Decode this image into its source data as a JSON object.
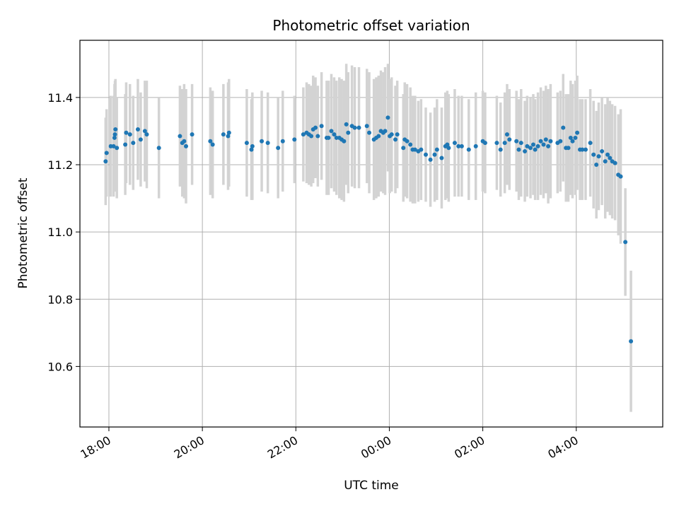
{
  "chart_data": {
    "type": "scatter",
    "title": "Photometric offset variation",
    "xlabel": "UTC time",
    "ylabel": "Photometric offset",
    "x_unit": "hours since 18:00 UTC",
    "xlim": [
      -0.62,
      11.85
    ],
    "ylim": [
      10.42,
      11.57
    ],
    "grid": true,
    "colors": {
      "marker": "#1f77b4",
      "errorbar": "#d3d3d3",
      "grid": "#b0b0b0"
    },
    "x_ticks": [
      {
        "value": 0,
        "label": "18:00"
      },
      {
        "value": 2,
        "label": "20:00"
      },
      {
        "value": 4,
        "label": "22:00"
      },
      {
        "value": 6,
        "label": "00:00"
      },
      {
        "value": 8,
        "label": "02:00"
      },
      {
        "value": 10,
        "label": "04:00"
      }
    ],
    "y_ticks": [
      {
        "value": 10.6,
        "label": "10.6"
      },
      {
        "value": 10.8,
        "label": "10.8"
      },
      {
        "value": 11.0,
        "label": "11.0"
      },
      {
        "value": 11.2,
        "label": "11.2"
      },
      {
        "value": 11.4,
        "label": "11.4"
      }
    ],
    "points": [
      [
        -0.07,
        11.21,
        0.13
      ],
      [
        -0.05,
        11.235,
        0.13
      ],
      [
        0.04,
        11.255,
        0.15
      ],
      [
        0.1,
        11.255,
        0.15
      ],
      [
        0.12,
        11.28,
        0.16
      ],
      [
        0.13,
        11.29,
        0.16
      ],
      [
        0.14,
        11.305,
        0.15
      ],
      [
        0.17,
        11.25,
        0.15
      ],
      [
        0.35,
        11.26,
        0.15
      ],
      [
        0.37,
        11.295,
        0.15
      ],
      [
        0.45,
        11.29,
        0.15
      ],
      [
        0.52,
        11.265,
        0.14
      ],
      [
        0.62,
        11.305,
        0.15
      ],
      [
        0.68,
        11.275,
        0.14
      ],
      [
        0.77,
        11.3,
        0.15
      ],
      [
        0.81,
        11.29,
        0.16
      ],
      [
        1.07,
        11.25,
        0.15
      ],
      [
        1.52,
        11.285,
        0.15
      ],
      [
        1.57,
        11.265,
        0.16
      ],
      [
        1.61,
        11.27,
        0.17
      ],
      [
        1.65,
        11.255,
        0.17
      ],
      [
        1.78,
        11.29,
        0.15
      ],
      [
        2.17,
        11.27,
        0.16
      ],
      [
        2.22,
        11.26,
        0.16
      ],
      [
        2.45,
        11.29,
        0.15
      ],
      [
        2.55,
        11.285,
        0.16
      ],
      [
        2.57,
        11.295,
        0.16
      ],
      [
        2.95,
        11.265,
        0.16
      ],
      [
        3.05,
        11.245,
        0.15
      ],
      [
        3.07,
        11.255,
        0.16
      ],
      [
        3.27,
        11.27,
        0.15
      ],
      [
        3.4,
        11.265,
        0.15
      ],
      [
        3.62,
        11.25,
        0.15
      ],
      [
        3.72,
        11.27,
        0.15
      ],
      [
        3.97,
        11.275,
        0.13
      ],
      [
        4.16,
        11.29,
        0.14
      ],
      [
        4.23,
        11.295,
        0.15
      ],
      [
        4.28,
        11.29,
        0.15
      ],
      [
        4.33,
        11.285,
        0.15
      ],
      [
        4.37,
        11.305,
        0.16
      ],
      [
        4.42,
        11.31,
        0.15
      ],
      [
        4.47,
        11.285,
        0.15
      ],
      [
        4.55,
        11.315,
        0.16
      ],
      [
        4.66,
        11.28,
        0.17
      ],
      [
        4.7,
        11.28,
        0.17
      ],
      [
        4.76,
        11.3,
        0.17
      ],
      [
        4.82,
        11.29,
        0.17
      ],
      [
        4.87,
        11.28,
        0.17
      ],
      [
        4.93,
        11.28,
        0.18
      ],
      [
        4.98,
        11.275,
        0.18
      ],
      [
        5.03,
        11.27,
        0.18
      ],
      [
        5.08,
        11.32,
        0.18
      ],
      [
        5.12,
        11.295,
        0.18
      ],
      [
        5.2,
        11.315,
        0.18
      ],
      [
        5.26,
        11.31,
        0.18
      ],
      [
        5.35,
        11.31,
        0.18
      ],
      [
        5.52,
        11.315,
        0.17
      ],
      [
        5.57,
        11.295,
        0.18
      ],
      [
        5.67,
        11.275,
        0.18
      ],
      [
        5.72,
        11.28,
        0.18
      ],
      [
        5.77,
        11.285,
        0.18
      ],
      [
        5.82,
        11.3,
        0.18
      ],
      [
        5.87,
        11.295,
        0.18
      ],
      [
        5.91,
        11.3,
        0.19
      ],
      [
        5.97,
        11.34,
        0.16
      ],
      [
        6.01,
        11.285,
        0.17
      ],
      [
        6.05,
        11.29,
        0.17
      ],
      [
        6.13,
        11.275,
        0.16
      ],
      [
        6.17,
        11.29,
        0.16
      ],
      [
        6.3,
        11.25,
        0.16
      ],
      [
        6.33,
        11.275,
        0.17
      ],
      [
        6.38,
        11.27,
        0.17
      ],
      [
        6.45,
        11.26,
        0.17
      ],
      [
        6.5,
        11.245,
        0.16
      ],
      [
        6.55,
        11.245,
        0.16
      ],
      [
        6.62,
        11.24,
        0.15
      ],
      [
        6.68,
        11.245,
        0.15
      ],
      [
        6.78,
        11.23,
        0.14
      ],
      [
        6.88,
        11.215,
        0.14
      ],
      [
        6.97,
        11.23,
        0.14
      ],
      [
        7.02,
        11.245,
        0.15
      ],
      [
        7.12,
        11.22,
        0.15
      ],
      [
        7.2,
        11.255,
        0.16
      ],
      [
        7.24,
        11.26,
        0.16
      ],
      [
        7.27,
        11.25,
        0.16
      ],
      [
        7.4,
        11.265,
        0.16
      ],
      [
        7.48,
        11.255,
        0.15
      ],
      [
        7.55,
        11.255,
        0.15
      ],
      [
        7.7,
        11.245,
        0.15
      ],
      [
        7.85,
        11.255,
        0.16
      ],
      [
        8.0,
        11.27,
        0.15
      ],
      [
        8.05,
        11.265,
        0.15
      ],
      [
        8.3,
        11.265,
        0.14
      ],
      [
        8.38,
        11.245,
        0.14
      ],
      [
        8.47,
        11.265,
        0.15
      ],
      [
        8.52,
        11.29,
        0.15
      ],
      [
        8.57,
        11.275,
        0.15
      ],
      [
        8.72,
        11.27,
        0.15
      ],
      [
        8.77,
        11.245,
        0.15
      ],
      [
        8.82,
        11.265,
        0.16
      ],
      [
        8.9,
        11.24,
        0.15
      ],
      [
        8.95,
        11.255,
        0.15
      ],
      [
        9.02,
        11.25,
        0.15
      ],
      [
        9.08,
        11.26,
        0.15
      ],
      [
        9.12,
        11.245,
        0.15
      ],
      [
        9.18,
        11.255,
        0.16
      ],
      [
        9.24,
        11.27,
        0.16
      ],
      [
        9.3,
        11.26,
        0.16
      ],
      [
        9.35,
        11.275,
        0.16
      ],
      [
        9.4,
        11.255,
        0.17
      ],
      [
        9.45,
        11.27,
        0.17
      ],
      [
        9.6,
        11.265,
        0.15
      ],
      [
        9.66,
        11.27,
        0.15
      ],
      [
        9.72,
        11.31,
        0.16
      ],
      [
        9.78,
        11.25,
        0.16
      ],
      [
        9.83,
        11.25,
        0.16
      ],
      [
        9.88,
        11.28,
        0.17
      ],
      [
        9.92,
        11.27,
        0.17
      ],
      [
        9.98,
        11.28,
        0.17
      ],
      [
        10.02,
        11.295,
        0.17
      ],
      [
        10.08,
        11.245,
        0.15
      ],
      [
        10.13,
        11.245,
        0.15
      ],
      [
        10.2,
        11.245,
        0.15
      ],
      [
        10.3,
        11.265,
        0.16
      ],
      [
        10.37,
        11.23,
        0.16
      ],
      [
        10.43,
        11.2,
        0.16
      ],
      [
        10.48,
        11.225,
        0.16
      ],
      [
        10.55,
        11.24,
        0.16
      ],
      [
        10.62,
        11.21,
        0.17
      ],
      [
        10.67,
        11.23,
        0.17
      ],
      [
        10.72,
        11.22,
        0.17
      ],
      [
        10.77,
        11.21,
        0.17
      ],
      [
        10.83,
        11.205,
        0.17
      ],
      [
        10.9,
        11.17,
        0.18
      ],
      [
        10.95,
        11.165,
        0.2
      ],
      [
        11.05,
        10.97,
        0.16
      ],
      [
        11.17,
        10.675,
        0.21
      ]
    ]
  }
}
